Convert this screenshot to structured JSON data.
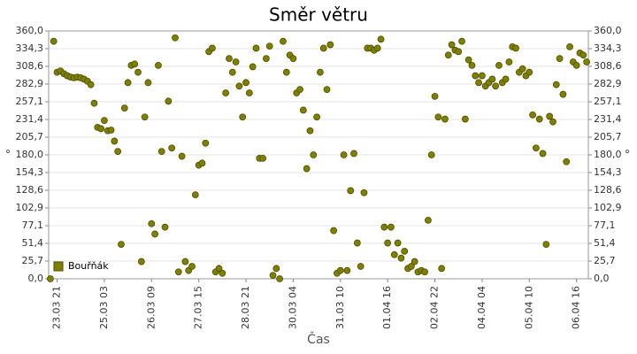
{
  "chart_data": {
    "type": "scatter",
    "title": "Směr větru",
    "x_label": "Čas",
    "y_label": "°",
    "y2_label": "°",
    "categories": [
      null,
      null,
      "23.03 21",
      null,
      null,
      null,
      null,
      null,
      null,
      null,
      null,
      null,
      null,
      null,
      null,
      null,
      "25.03 03",
      null,
      null,
      null,
      null,
      null,
      null,
      null,
      null,
      null,
      null,
      null,
      null,
      null,
      "26.03 09",
      null,
      null,
      null,
      null,
      null,
      null,
      null,
      null,
      null,
      null,
      null,
      null,
      null,
      "27.03 15",
      null,
      null,
      null,
      null,
      null,
      null,
      null,
      null,
      null,
      null,
      null,
      null,
      null,
      "28.03 21",
      null,
      null,
      null,
      null,
      null,
      null,
      null,
      null,
      null,
      null,
      null,
      null,
      null,
      "30.03 04",
      null,
      null,
      null,
      null,
      null,
      null,
      null,
      null,
      null,
      null,
      null,
      null,
      null,
      "31.03 10",
      null,
      null,
      null,
      null,
      null,
      null,
      null,
      null,
      null,
      null,
      null,
      null,
      null,
      "01.04 16",
      null,
      null,
      null,
      null,
      null,
      null,
      null,
      null,
      null,
      null,
      null,
      null,
      null,
      "02.04 22",
      null,
      null,
      null,
      null,
      null,
      null,
      null,
      null,
      null,
      null,
      null,
      null,
      null,
      "04.04 04",
      null,
      null,
      null,
      null,
      null,
      null,
      null,
      null,
      null,
      null,
      null,
      null,
      null,
      "05.04 10",
      null,
      null,
      null,
      null,
      null,
      null,
      null,
      null,
      null,
      null,
      null,
      null,
      null,
      "06.04 16",
      null,
      null,
      null
    ],
    "series": [
      {
        "name": "Bouřňák",
        "color": "#808000",
        "values": [
          0,
          345,
          300,
          302,
          298,
          295,
          293,
          292,
          293,
          292,
          290,
          287,
          282,
          255,
          220,
          218,
          230,
          215,
          216,
          200,
          185,
          50,
          248,
          285,
          310,
          312,
          300,
          25,
          235,
          285,
          80,
          65,
          310,
          185,
          75,
          258,
          190,
          350,
          10,
          178,
          25,
          12,
          18,
          122,
          165,
          168,
          197,
          330,
          335,
          10,
          15,
          8,
          270,
          320,
          300,
          315,
          280,
          235,
          285,
          270,
          308,
          335,
          175,
          175,
          320,
          338,
          5,
          15,
          0,
          345,
          300,
          325,
          320,
          270,
          275,
          245,
          160,
          215,
          180,
          235,
          300,
          335,
          275,
          340,
          70,
          8,
          12,
          180,
          12,
          128,
          182,
          52,
          18,
          125,
          335,
          335,
          332,
          335,
          348,
          75,
          52,
          75,
          35,
          52,
          30,
          40,
          15,
          18,
          25,
          10,
          12,
          10,
          85,
          180,
          265,
          235,
          15,
          232,
          325,
          340,
          332,
          330,
          345,
          232,
          318,
          310,
          295,
          285,
          295,
          280,
          285,
          290,
          280,
          310,
          285,
          290,
          315,
          337,
          335,
          300,
          305,
          295,
          300,
          238,
          190,
          232,
          182,
          50,
          236,
          228,
          282,
          320,
          268,
          170,
          337,
          315,
          310,
          328,
          325,
          315
        ]
      }
    ],
    "ylim": [
      0,
      360
    ],
    "yticks": [
      {
        "value": 0,
        "label": "0,0"
      },
      {
        "value": 25.7,
        "label": "25,7"
      },
      {
        "value": 51.4,
        "label": "51,4"
      },
      {
        "value": 77.1,
        "label": "77,1"
      },
      {
        "value": 102.9,
        "label": "102,9"
      },
      {
        "value": 128.6,
        "label": "128,6"
      },
      {
        "value": 154.3,
        "label": "154,3"
      },
      {
        "value": 180,
        "label": "180,0"
      },
      {
        "value": 205.7,
        "label": "205,7"
      },
      {
        "value": 231.4,
        "label": "231,4"
      },
      {
        "value": 257.1,
        "label": "257,1"
      },
      {
        "value": 282.9,
        "label": "282,9"
      },
      {
        "value": 308.6,
        "label": "308,6"
      },
      {
        "value": 334.3,
        "label": "334,3"
      },
      {
        "value": 360,
        "label": "360,0"
      }
    ],
    "y2lim": [
      0,
      360
    ],
    "y2ticks": [
      {
        "value": 0,
        "label": "0,0"
      },
      {
        "value": 25.7,
        "label": "25,7"
      },
      {
        "value": 51.4,
        "label": "51,4"
      },
      {
        "value": 77.1,
        "label": "77,1"
      },
      {
        "value": 102.9,
        "label": "102,9"
      },
      {
        "value": 128.6,
        "label": "128,6"
      },
      {
        "value": 154.3,
        "label": "154,3"
      },
      {
        "value": 180,
        "label": "180,0"
      },
      {
        "value": 205.7,
        "label": "205,7"
      },
      {
        "value": 231.4,
        "label": "231,4"
      },
      {
        "value": 257.1,
        "label": "257,1"
      },
      {
        "value": 282.9,
        "label": "282,9"
      },
      {
        "value": 308.6,
        "label": "308,6"
      },
      {
        "value": 334.3,
        "label": "334,3"
      },
      {
        "value": 360,
        "label": "360,0"
      }
    ],
    "grid": true,
    "legend": "bottom-left"
  }
}
